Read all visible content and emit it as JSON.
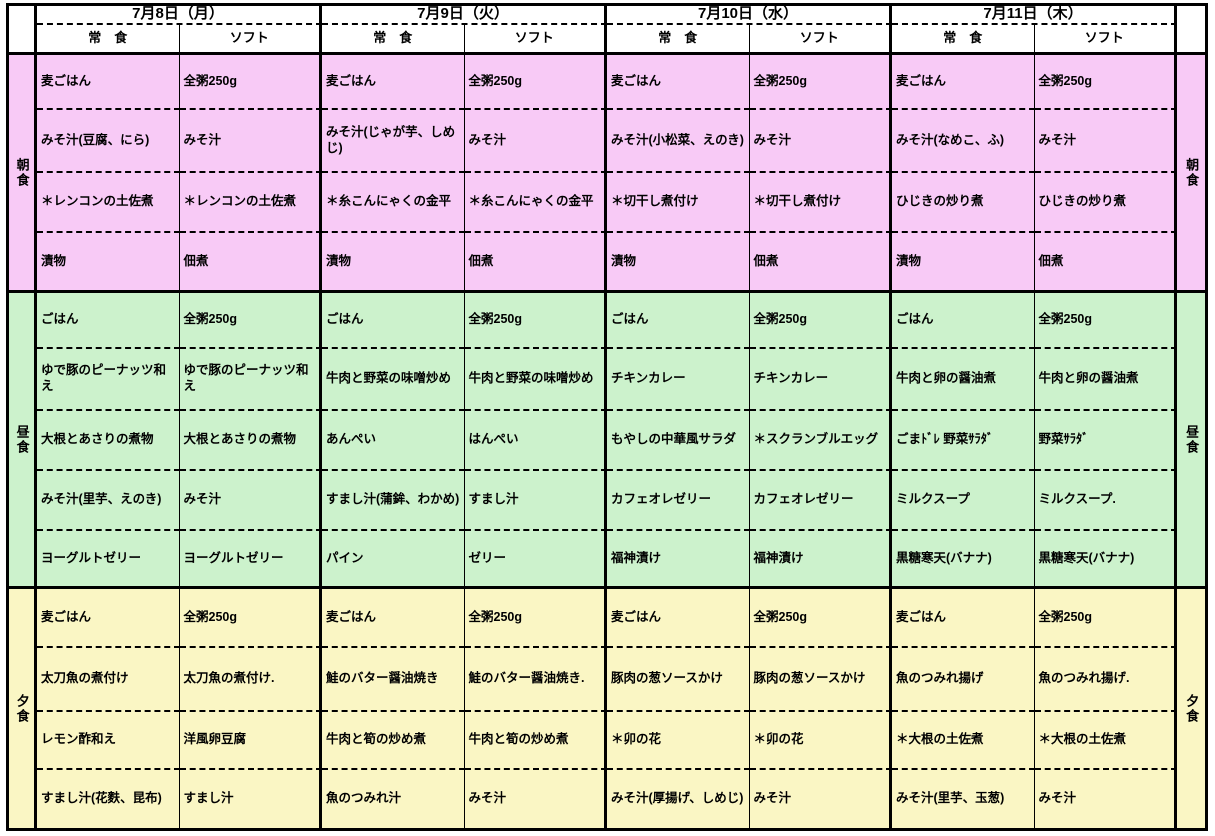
{
  "table": {
    "days": [
      "7月8日（月）",
      "7月9日（火）",
      "7月10日（水）",
      "7月11日（木）"
    ],
    "diet_types": [
      "常　食",
      "ソフト"
    ],
    "colors": {
      "breakfast_bg": "#f8caf6",
      "lunch_bg": "#ccf2cc",
      "dinner_bg": "#faf6c4",
      "border": "#000000"
    },
    "sections": [
      {
        "name": "breakfast",
        "label": "朝食",
        "color": "#f8caf6",
        "rows": [
          [
            "麦ごはん",
            "全粥250g",
            "麦ごはん",
            "全粥250g",
            "麦ごはん",
            "全粥250g",
            "麦ごはん",
            "全粥250g"
          ],
          [
            "みそ汁(豆腐、にら)",
            "みそ汁",
            "みそ汁(じゃが芋、しめじ)",
            "みそ汁",
            "みそ汁(小松菜、えのき)",
            "みそ汁",
            "みそ汁(なめこ、ふ)",
            "みそ汁"
          ],
          [
            "＊レンコンの土佐煮",
            "＊レンコンの土佐煮",
            "＊糸こんにゃくの金平",
            "＊糸こんにゃくの金平",
            "＊切干し煮付け",
            "＊切干し煮付け",
            "ひじきの炒り煮",
            "ひじきの炒り煮"
          ],
          [
            "漬物",
            "佃煮",
            "漬物",
            "佃煮",
            "漬物",
            "佃煮",
            "漬物",
            "佃煮"
          ]
        ]
      },
      {
        "name": "lunch",
        "label": "昼食",
        "color": "#ccf2cc",
        "rows": [
          [
            "ごはん",
            "全粥250g",
            "ごはん",
            "全粥250g",
            "ごはん",
            "全粥250g",
            "ごはん",
            "全粥250g"
          ],
          [
            "ゆで豚のピーナッツ和え",
            "ゆで豚のピーナッツ和え",
            "牛肉と野菜の味噌炒め",
            "牛肉と野菜の味噌炒め",
            "チキンカレー",
            "チキンカレー",
            "牛肉と卵の醤油煮",
            "牛肉と卵の醤油煮"
          ],
          [
            "大根とあさりの煮物",
            "大根とあさりの煮物",
            "あんぺい",
            "はんぺい",
            "もやしの中華風サラダ",
            "＊スクランブルエッグ",
            "ごまﾄﾞﾚ 野菜ｻﾗﾀﾞ",
            "野菜ｻﾗﾀﾞ"
          ],
          [
            "みそ汁(里芋、えのき)",
            "みそ汁",
            "すまし汁(蒲鉾、わかめ)",
            "すまし汁",
            "カフェオレゼリー",
            "カフェオレゼリー",
            "ミルクスープ",
            "ミルクスープ."
          ],
          [
            "ヨーグルトゼリー",
            "ヨーグルトゼリー",
            "パイン",
            "ゼリー",
            "福神漬け",
            "福神漬け",
            "黒糖寒天(バナナ)",
            "黒糖寒天(バナナ)"
          ]
        ]
      },
      {
        "name": "dinner",
        "label": "夕食",
        "color": "#faf6c4",
        "rows": [
          [
            "麦ごはん",
            "全粥250g",
            "麦ごはん",
            "全粥250g",
            "麦ごはん",
            "全粥250g",
            "麦ごはん",
            "全粥250g"
          ],
          [
            "太刀魚の煮付け",
            "太刀魚の煮付け.",
            "鮭のバター醤油焼き",
            "鮭のバター醤油焼き.",
            "豚肉の葱ソースかけ",
            "豚肉の葱ソースかけ",
            "魚のつみれ揚げ",
            "魚のつみれ揚げ."
          ],
          [
            "レモン酢和え",
            "洋風卵豆腐",
            "牛肉と筍の炒め煮",
            "牛肉と筍の炒め煮",
            "＊卯の花",
            "＊卯の花",
            "＊大根の土佐煮",
            "＊大根の土佐煮"
          ],
          [
            "すまし汁(花麩、昆布)",
            "すまし汁",
            "魚のつみれ汁",
            "みそ汁",
            "みそ汁(厚揚げ、しめじ)",
            "みそ汁",
            "みそ汁(里芋、玉葱)",
            "みそ汁"
          ]
        ]
      }
    ]
  }
}
